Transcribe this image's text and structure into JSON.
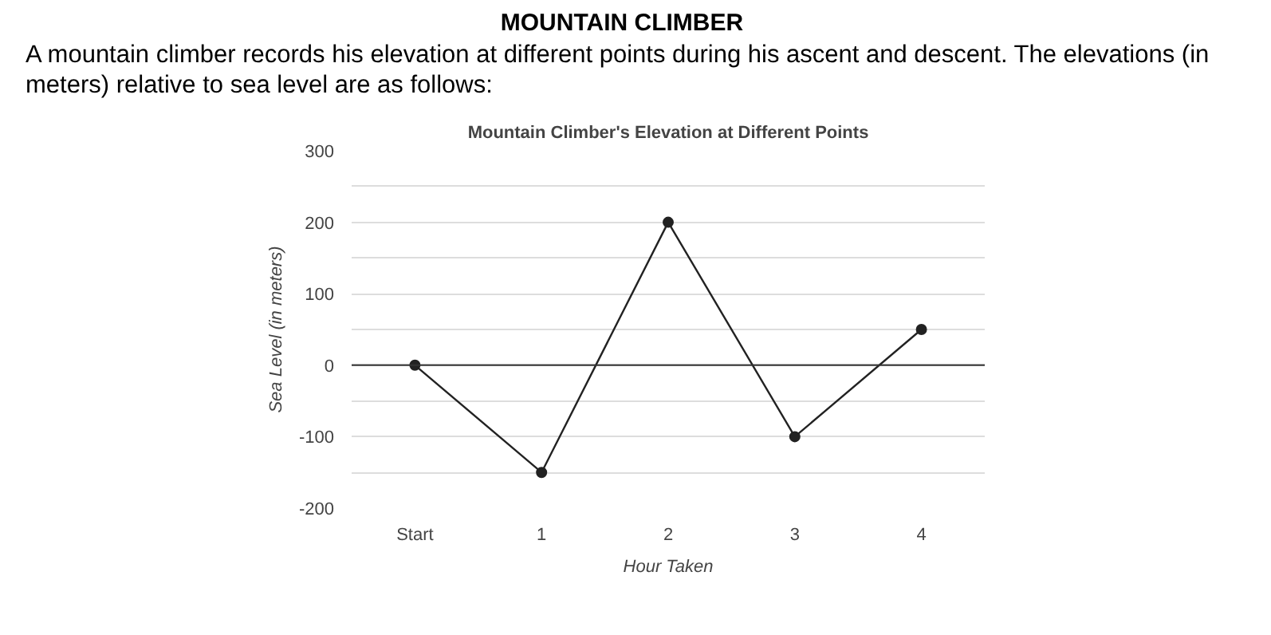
{
  "chart_data": {
    "type": "line",
    "title": "Mountain Climber's Elevation at Different Points",
    "annotations": [
      "MOUNTAIN CLIMBER",
      "A mountain climber records his elevation at different points during his ascent and descent. The elevations (in meters) relative to sea level are as follows:"
    ],
    "xlabel": "Hour Taken",
    "ylabel": "Sea Level (in meters)",
    "categories": [
      "Start",
      "1",
      "2",
      "3",
      "4"
    ],
    "series": [
      {
        "color": "#222222",
        "values": [
          0,
          -150,
          200,
          -100,
          50
        ]
      }
    ],
    "ylim": [
      -200,
      300
    ],
    "yticks": [
      -200,
      {
        "value": -150,
        "label": null
      },
      -100,
      {
        "value": -50,
        "label": null
      },
      0,
      {
        "value": 50,
        "label": null
      },
      100,
      {
        "value": 150,
        "label": null
      },
      200,
      {
        "value": 250,
        "label": null
      },
      300
    ],
    "ref_lines": [
      {
        "axis": "y",
        "value": 0,
        "label": null,
        "color": "#333333"
      }
    ],
    "grid": "y",
    "marker": "circle"
  }
}
